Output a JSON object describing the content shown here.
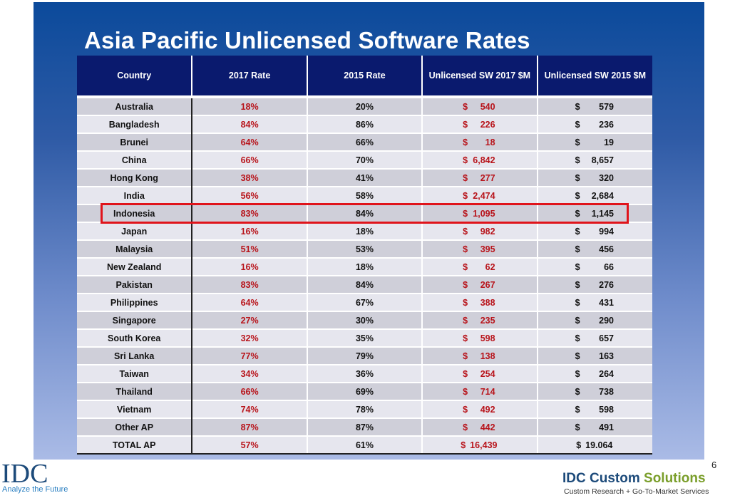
{
  "title": "Asia Pacific Unlicensed Software Rates",
  "columns": [
    "Country",
    "2017 Rate",
    "2015 Rate",
    "Unlicensed SW 2017 $M",
    "Unlicensed SW 2015 $M"
  ],
  "rows": [
    {
      "country": "Australia",
      "r2017": "18%",
      "r2015": "20%",
      "sw2017": "540",
      "sw2015": "579"
    },
    {
      "country": "Bangladesh",
      "r2017": "84%",
      "r2015": "86%",
      "sw2017": "226",
      "sw2015": "236"
    },
    {
      "country": "Brunei",
      "r2017": "64%",
      "r2015": "66%",
      "sw2017": "18",
      "sw2015": "19"
    },
    {
      "country": "China",
      "r2017": "66%",
      "r2015": "70%",
      "sw2017": "6,842",
      "sw2015": "8,657"
    },
    {
      "country": "Hong Kong",
      "r2017": "38%",
      "r2015": "41%",
      "sw2017": "277",
      "sw2015": "320"
    },
    {
      "country": "India",
      "r2017": "56%",
      "r2015": "58%",
      "sw2017": "2,474",
      "sw2015": "2,684"
    },
    {
      "country": "Indonesia",
      "r2017": "83%",
      "r2015": "84%",
      "sw2017": "1,095",
      "sw2015": "1,145",
      "highlighted": true
    },
    {
      "country": "Japan",
      "r2017": "16%",
      "r2015": "18%",
      "sw2017": "982",
      "sw2015": "994"
    },
    {
      "country": "Malaysia",
      "r2017": "51%",
      "r2015": "53%",
      "sw2017": "395",
      "sw2015": "456"
    },
    {
      "country": "New Zealand",
      "r2017": "16%",
      "r2015": "18%",
      "sw2017": "62",
      "sw2015": "66"
    },
    {
      "country": "Pakistan",
      "r2017": "83%",
      "r2015": "84%",
      "sw2017": "267",
      "sw2015": "276"
    },
    {
      "country": "Philippines",
      "r2017": "64%",
      "r2015": "67%",
      "sw2017": "388",
      "sw2015": "431"
    },
    {
      "country": "Singapore",
      "r2017": "27%",
      "r2015": "30%",
      "sw2017": "235",
      "sw2015": "290"
    },
    {
      "country": "South Korea",
      "r2017": "32%",
      "r2015": "35%",
      "sw2017": "598",
      "sw2015": "657"
    },
    {
      "country": "Sri Lanka",
      "r2017": "77%",
      "r2015": "79%",
      "sw2017": "138",
      "sw2015": "163"
    },
    {
      "country": "Taiwan",
      "r2017": "34%",
      "r2015": "36%",
      "sw2017": "254",
      "sw2015": "264"
    },
    {
      "country": "Thailand",
      "r2017": "66%",
      "r2015": "69%",
      "sw2017": "714",
      "sw2015": "738"
    },
    {
      "country": "Vietnam",
      "r2017": "74%",
      "r2015": "78%",
      "sw2017": "492",
      "sw2015": "598"
    },
    {
      "country": "Other AP",
      "r2017": "87%",
      "r2015": "87%",
      "sw2017": "442",
      "sw2015": "491"
    },
    {
      "country": "TOTAL AP",
      "r2017": "57%",
      "r2015": "61%",
      "sw2017": "16,439",
      "sw2015": "19.064",
      "total": true
    }
  ],
  "currency_symbol": "$",
  "footer": {
    "logo_left": "IDC",
    "tagline_left": "Analyze the Future",
    "logo_right_a": "IDC Custom",
    "logo_right_b": "Solutions",
    "tagline_right": "Custom Research + Go-To-Market Services",
    "page_number": "6"
  },
  "colors": {
    "header_bg": "#0a1a6e",
    "accent_red": "#b8141b",
    "highlight_box": "#e0141b"
  }
}
